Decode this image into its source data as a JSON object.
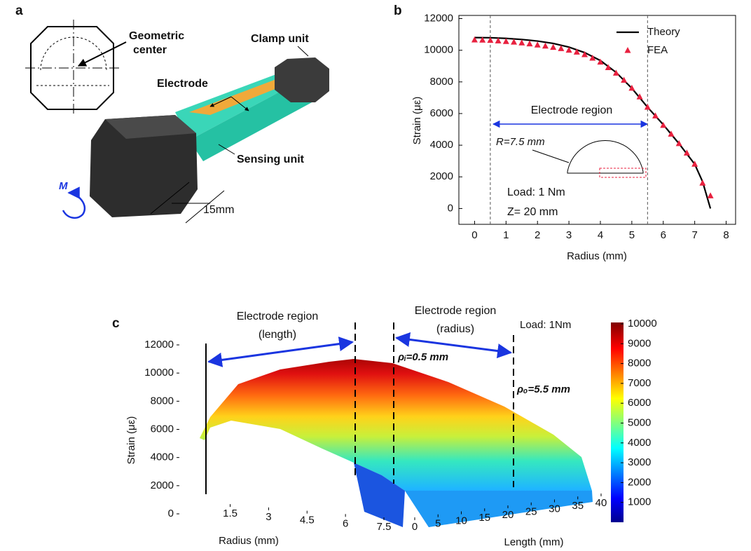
{
  "panel_a": {
    "label": "a",
    "geometric_center": "Geometric center",
    "clamp_unit": "Clamp unit",
    "electrode": "Electrode",
    "sensing_unit": "Sensing unit",
    "moment": "M",
    "dimension": "15mm"
  },
  "chart_data": [
    {
      "type": "line",
      "panel_label": "b",
      "xlabel": "Radius (mm)",
      "ylabel": "Strain (με)",
      "xlim": [
        -0.5,
        8.3
      ],
      "xticks": [
        0,
        1,
        2,
        3,
        4,
        5,
        6,
        7,
        8
      ],
      "ylim": [
        -1000,
        12200
      ],
      "yticks": [
        0,
        2000,
        4000,
        6000,
        8000,
        10000,
        12000
      ],
      "legend": "upper right",
      "electrode_bounds": [
        0.5,
        5.5
      ],
      "annotations": [
        "Electrode region",
        "R=7.5 mm",
        "Load: 1 Nm",
        "Z= 20 mm"
      ],
      "series": [
        {
          "name": "Theory",
          "color": "#000000",
          "marker": "none",
          "x": [
            0,
            0.5,
            1,
            1.5,
            2,
            2.5,
            3,
            3.5,
            4,
            4.5,
            5,
            5.5,
            6,
            6.5,
            7,
            7.25,
            7.5
          ],
          "values": [
            10800,
            10790,
            10750,
            10680,
            10580,
            10430,
            10200,
            9850,
            9350,
            8600,
            7600,
            6400,
            5300,
            4100,
            2800,
            1700,
            0
          ]
        },
        {
          "name": "FEA",
          "color": "#e8213f",
          "marker": "triangle",
          "x": [
            0,
            0.25,
            0.5,
            0.75,
            1,
            1.25,
            1.5,
            1.75,
            2,
            2.25,
            2.5,
            2.75,
            3,
            3.25,
            3.5,
            3.75,
            4,
            4.25,
            4.5,
            4.75,
            5,
            5.25,
            5.5,
            5.75,
            6,
            6.25,
            6.5,
            6.75,
            7,
            7.25,
            7.5
          ],
          "values": [
            10650,
            10640,
            10620,
            10590,
            10550,
            10510,
            10460,
            10400,
            10330,
            10260,
            10180,
            10100,
            10000,
            9880,
            9720,
            9500,
            9250,
            8900,
            8550,
            8100,
            7600,
            7050,
            6400,
            5850,
            5250,
            4700,
            4100,
            3500,
            2800,
            1600,
            800
          ]
        }
      ]
    },
    {
      "type": "surface",
      "panel_label": "c",
      "xlabel": "Radius (mm)",
      "zlabel": "Length (mm)",
      "ylabel": "Strain (με)",
      "xlim": [
        0.5,
        7.5
      ],
      "xticks": [
        1.5,
        3,
        4.5,
        6,
        7.5
      ],
      "zlim": [
        0,
        40
      ],
      "zticks": [
        0,
        5,
        10,
        15,
        20,
        25,
        30,
        35,
        40
      ],
      "ylim": [
        0,
        12000
      ],
      "yticks": [
        0,
        2000,
        4000,
        6000,
        8000,
        10000,
        12000
      ],
      "colormap": "jet",
      "colorbar": {
        "lim": [
          0,
          10000
        ],
        "ticks": [
          1000,
          2000,
          3000,
          4000,
          5000,
          6000,
          7000,
          8000,
          9000,
          10000
        ]
      },
      "annotations": {
        "length_region": [
          "Electrode region",
          "(length)"
        ],
        "radius_region": [
          "Electrode region",
          "(radius)"
        ],
        "load": "Load: 1Nm",
        "inner": "ρᵢ=0.5 mm",
        "outer": "ρₒ=5.5 mm"
      }
    }
  ]
}
